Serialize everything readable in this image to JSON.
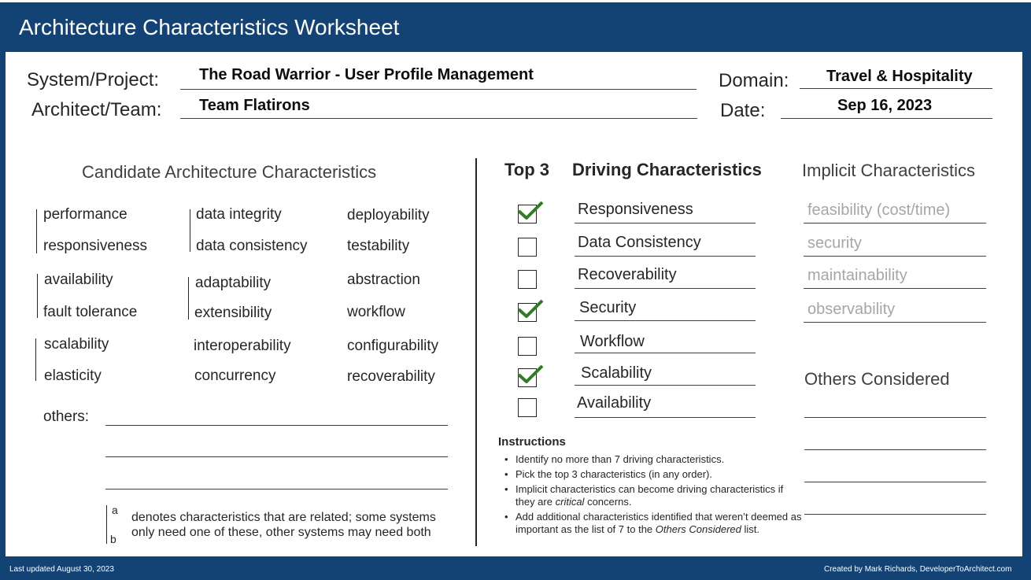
{
  "header": {
    "title": "Architecture Characteristics Worksheet"
  },
  "project": {
    "system_label": "System/Project:",
    "system_value": "The Road Warrior -  User Profile Management",
    "architect_label": "Architect/Team:",
    "architect_value": "Team Flatirons",
    "domain_label": "Domain:",
    "domain_value": "Travel & Hospitality",
    "date_label": "Date:",
    "date_value": "Sep 16, 2023"
  },
  "candidates": {
    "title": "Candidate Architecture Characteristics",
    "col1": [
      "performance",
      "responsiveness",
      "availability",
      "fault tolerance",
      "scalability",
      "elasticity"
    ],
    "col2": [
      "data integrity",
      "data consistency",
      "adaptability",
      "extensibility",
      "interoperability",
      "concurrency"
    ],
    "col3": [
      "deployability",
      "testability",
      "abstraction",
      "workflow",
      "configurability",
      "recoverability"
    ],
    "others_label": "others:"
  },
  "legend": {
    "a": "a",
    "b": "b",
    "line1": "denotes characteristics that are related; some systems",
    "line2": "only need one of these, other systems may need both"
  },
  "driving": {
    "top3_label": "Top 3",
    "title": "Driving Characteristics",
    "items": [
      {
        "label": "Responsiveness",
        "checked": true
      },
      {
        "label": "Data Consistency",
        "checked": false
      },
      {
        "label": "Recoverability",
        "checked": false
      },
      {
        "label": "Security",
        "checked": true
      },
      {
        "label": "Workflow",
        "checked": false
      },
      {
        "label": "Scalability",
        "checked": true
      },
      {
        "label": "Availability",
        "checked": false
      }
    ]
  },
  "instructions": {
    "title": "Instructions",
    "item1": "Identify no more than 7 driving characteristics.",
    "item2": "Pick the top 3 characteristics (in any order).",
    "item3_a": "Implicit characteristics can become driving characteristics if they are",
    "item3_em": "critical",
    "item3_b": "concerns.",
    "item4_a": "Add additional characteristics identified that weren’t deemed as important as the list of 7 to the",
    "item4_em": "Others Considered",
    "item4_b": "list."
  },
  "implicit": {
    "title": "Implicit Characteristics",
    "items": [
      "feasibility (cost/time)",
      "security",
      "maintainability",
      "observability"
    ]
  },
  "others_considered": {
    "title": "Others Considered"
  },
  "footer": {
    "left": "Last updated August 30, 2023",
    "right": "Created by Mark Richards, DeveloperToArchitect.com"
  },
  "colors": {
    "frame": "#134374",
    "check": "#2e7d22",
    "implicit_text": "#a6a6a6"
  }
}
